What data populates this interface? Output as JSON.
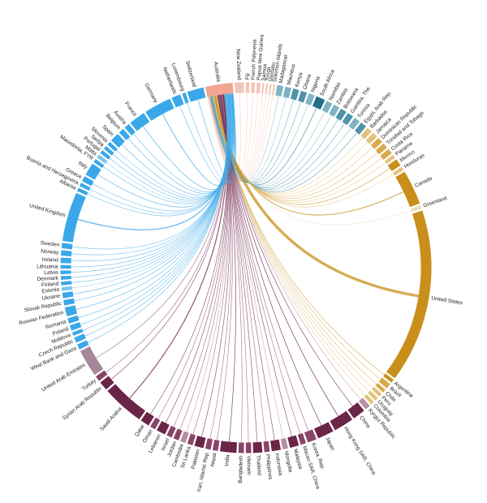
{
  "chart_data": {
    "type": "chord",
    "categories": [
      "Australia",
      "New Zealand",
      "Fiji",
      "French Polynesia",
      "Papua New Guinea",
      "Samoa",
      "Tonga",
      "Vanuatu",
      "Solomon Islands",
      "Madagascar",
      "Mauritius",
      "Kenya",
      "Ghana",
      "Nigeria",
      "South Africa",
      "Namibia",
      "Zambia",
      "Botswana",
      "Gambia, The",
      "Tunisia",
      "Egypt, Arab Rep.",
      "Barbados",
      "Jamaica",
      "Dominican Republic",
      "Trinidad and Tobago",
      "Costa Rica",
      "Panama",
      "Mexico",
      "Honduras",
      "Canada",
      "Greenland",
      "United States",
      "Argentina",
      "Brazil",
      "Chile",
      "Peru",
      "Uruguay",
      "Colombia",
      "Kyrgyz Republic",
      "China",
      "Hong Kong SAR, China",
      "Japan",
      "Korea, Rep.",
      "Macao SAR, China",
      "Malaysia",
      "Mongolia",
      "Indonesia",
      "Philippines",
      "Thailand",
      "Vietnam",
      "Bangladesh",
      "India",
      "Nepal",
      "Iran, Islamic Rep.",
      "Pakistan",
      "Sri Lanka",
      "Cambodia",
      "Jordan",
      "Israel",
      "Lebanon",
      "Oman",
      "Qatar",
      "Saudi Arabia",
      "Syrian Arab Republic",
      "Turkey",
      "United Arab Emirates",
      "West Bank and Gaza",
      "Czech Republic",
      "Moldova",
      "Poland",
      "Romania",
      "Russian Federation",
      "Slovak Republic",
      "Ukraine",
      "Estonia",
      "Finland",
      "Denmark",
      "Latvia",
      "Lithuania",
      "Ireland",
      "Norway",
      "Sweden",
      "United Kingdom",
      "Albania",
      "Bosnia and Herzegovina",
      "Greece",
      "Italy",
      "Macedonia, FYR",
      "Malta",
      "Portugal",
      "Serbia",
      "Slovenia",
      "Spain",
      "Belgium",
      "Austria",
      "France",
      "Germany",
      "Netherlands",
      "Luxembourg",
      "Switzerland"
    ],
    "values": [
      8,
      3,
      1.5,
      1.5,
      1.5,
      1,
      1,
      1,
      1,
      2.2,
      2.2,
      2.2,
      2.2,
      2.2,
      3,
      2.2,
      2.2,
      2.2,
      2.2,
      2.2,
      2.2,
      2,
      2,
      2,
      2,
      2,
      1.5,
      2.5,
      1.5,
      10,
      1.5,
      48,
      1.5,
      2,
      1.5,
      1.5,
      1.5,
      1.5,
      2,
      4,
      6,
      5,
      3,
      2,
      3,
      2,
      3,
      2,
      3,
      2,
      2,
      5,
      2,
      2,
      3,
      2,
      2,
      2,
      2,
      3,
      2,
      3,
      12,
      3,
      2,
      8,
      2,
      2,
      1.5,
      2,
      2,
      3,
      2,
      2,
      1.5,
      1.5,
      1.5,
      1.5,
      1.5,
      2,
      2,
      2,
      14,
      1.5,
      1.5,
      2,
      4,
      1.5,
      1.5,
      1.5,
      1.5,
      1.5,
      3,
      2,
      2,
      5,
      8,
      3,
      1.5,
      5
    ],
    "colors": [
      "#f2a591",
      "#f5c3b6",
      "#f5c3b6",
      "#f5c3b6",
      "#f5c3b6",
      "#f5c3b6",
      "#f5c3b6",
      "#f5c3b6",
      "#f5c3b6",
      "#7fb3c3",
      "#7fb3c3",
      "#4f93a8",
      "#4f93a8",
      "#7fb3c3",
      "#1f6f86",
      "#7fb3c3",
      "#7fb3c3",
      "#4f93a8",
      "#4f93a8",
      "#7fb3c3",
      "#4f93a8",
      "#e3c27a",
      "#e3c27a",
      "#d9a94a",
      "#d9a94a",
      "#d9a94a",
      "#e3c27a",
      "#c8901a",
      "#e3c27a",
      "#c8901a",
      "#eedcb3",
      "#c8901a",
      "#c8901a",
      "#d9a94a",
      "#d9a94a",
      "#e3c27a",
      "#e3c27a",
      "#e3c27a",
      "#b58ea3",
      "#6b2547",
      "#6b2547",
      "#6b2547",
      "#8a4468",
      "#8a4468",
      "#6b2547",
      "#b58ea3",
      "#6b2547",
      "#8a4468",
      "#6b2547",
      "#8a4468",
      "#8a4468",
      "#6b2547",
      "#8a4468",
      "#8a4468",
      "#6b2547",
      "#8a4468",
      "#b58ea3",
      "#8a4468",
      "#8a4468",
      "#6b2547",
      "#8a4468",
      "#6b2547",
      "#6b2547",
      "#6b2547",
      "#8a4468",
      "#a5879a",
      "#3aa8e8",
      "#3aa8e8",
      "#3aa8e8",
      "#3aa8e8",
      "#3aa8e8",
      "#3aa8e8",
      "#3aa8e8",
      "#3aa8e8",
      "#7cc4ef",
      "#3aa8e8",
      "#3aa8e8",
      "#3aa8e8",
      "#3aa8e8",
      "#3aa8e8",
      "#3aa8e8",
      "#3aa8e8",
      "#3aa8e8",
      "#3aa8e8",
      "#3aa8e8",
      "#3aa8e8",
      "#3aa8e8",
      "#3aa8e8",
      "#7cc4ef",
      "#3aa8e8",
      "#3aa8e8",
      "#3aa8e8",
      "#3aa8e8",
      "#3aa8e8",
      "#3aa8e8",
      "#3aa8e8",
      "#3aa8e8",
      "#3aa8e8",
      "#3aa8e8",
      "#3aa8e8"
    ]
  }
}
